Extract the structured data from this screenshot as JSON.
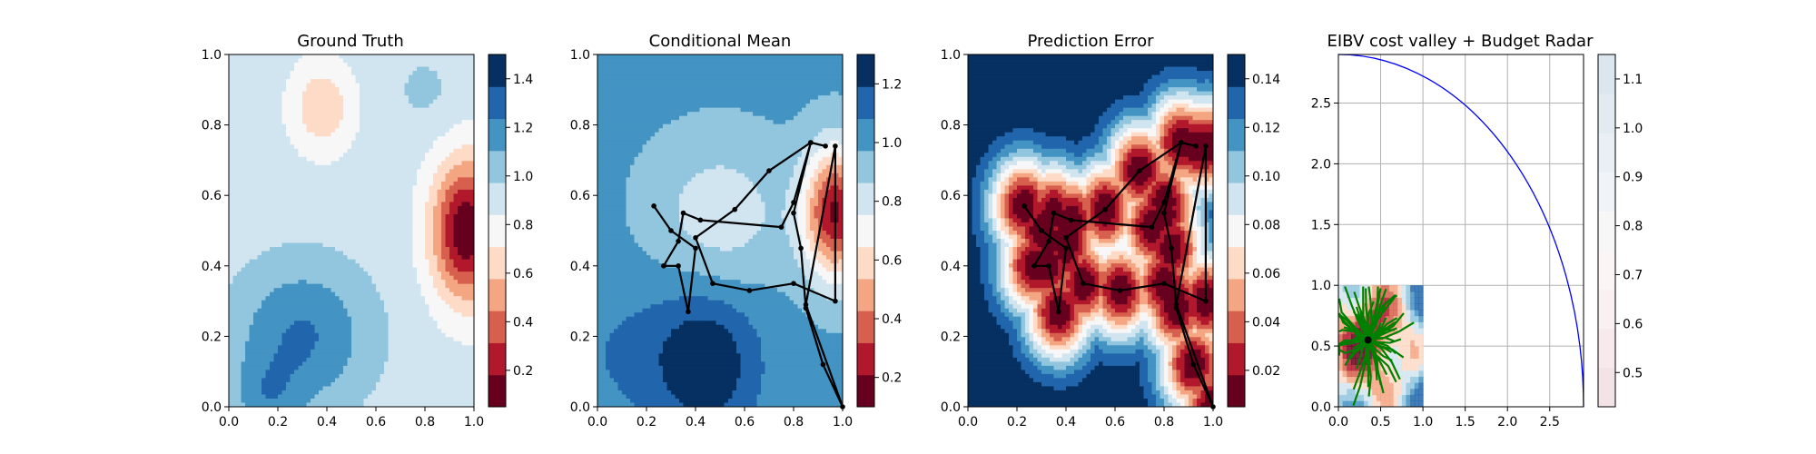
{
  "chart_data": [
    {
      "type": "heatmap",
      "title": "Ground Truth",
      "xlim": [
        0,
        1
      ],
      "ylim": [
        0,
        1
      ],
      "xticks": [
        "0.0",
        "0.2",
        "0.4",
        "0.6",
        "0.8",
        "1.0"
      ],
      "yticks": [
        "0.0",
        "0.2",
        "0.4",
        "0.6",
        "0.8",
        "1.0"
      ],
      "colorbar": {
        "ticks": [
          "0.2",
          "0.4",
          "0.6",
          "0.8",
          "1.0",
          "1.2",
          "1.4"
        ],
        "tick_values": [
          0.2,
          0.4,
          0.6,
          0.8,
          1.0,
          1.2,
          1.4
        ],
        "range": [
          0.05,
          1.5
        ]
      },
      "colormap": [
        "#67001f",
        "#b2182b",
        "#d6604d",
        "#f4a582",
        "#fddbc7",
        "#f7f7f7",
        "#d1e5f0",
        "#92c5de",
        "#4393c3",
        "#2166ac",
        "#053061"
      ],
      "field": {
        "background": 0.9,
        "components": [
          {
            "cx": 0.97,
            "cy": 0.5,
            "sx": 0.1,
            "sy": 0.14,
            "a": -0.85
          },
          {
            "cx": 0.38,
            "cy": 0.85,
            "sx": 0.09,
            "sy": 0.09,
            "a": -0.3
          },
          {
            "cx": 0.3,
            "cy": 0.2,
            "sx": 0.2,
            "sy": 0.15,
            "a": 0.35
          },
          {
            "cx": 0.15,
            "cy": 0.02,
            "sx": 0.1,
            "sy": 0.08,
            "a": 0.2
          },
          {
            "cx": 0.8,
            "cy": 0.9,
            "sx": 0.1,
            "sy": 0.08,
            "a": 0.1
          }
        ]
      }
    },
    {
      "type": "heatmap",
      "title": "Conditional Mean",
      "xlim": [
        0,
        1
      ],
      "ylim": [
        0,
        1
      ],
      "xticks": [
        "0.0",
        "0.2",
        "0.4",
        "0.6",
        "0.8",
        "1.0"
      ],
      "yticks": [
        "0.0",
        "0.2",
        "0.4",
        "0.6",
        "0.8",
        "1.0"
      ],
      "colorbar": {
        "ticks": [
          "0.2",
          "0.4",
          "0.6",
          "0.8",
          "1.0",
          "1.2"
        ],
        "tick_values": [
          0.2,
          0.4,
          0.6,
          0.8,
          1.0,
          1.2
        ],
        "range": [
          0.1,
          1.3
        ]
      },
      "colormap": [
        "#67001f",
        "#b2182b",
        "#d6604d",
        "#f4a582",
        "#fddbc7",
        "#f7f7f7",
        "#d1e5f0",
        "#92c5de",
        "#4393c3",
        "#2166ac",
        "#053061"
      ],
      "field": {
        "background": 1.0,
        "components": [
          {
            "cx": 0.97,
            "cy": 0.55,
            "sx": 0.09,
            "sy": 0.13,
            "a": -0.8
          },
          {
            "cx": 0.5,
            "cy": 0.55,
            "sx": 0.2,
            "sy": 0.15,
            "a": -0.2
          },
          {
            "cx": 0.45,
            "cy": 0.12,
            "sx": 0.14,
            "sy": 0.14,
            "a": 0.25
          },
          {
            "cx": 0.2,
            "cy": 0.15,
            "sx": 0.25,
            "sy": 0.15,
            "a": 0.1
          }
        ]
      },
      "path": [
        [
          0.23,
          0.57
        ],
        [
          0.3,
          0.5
        ],
        [
          0.4,
          0.45
        ],
        [
          0.37,
          0.27
        ],
        [
          0.33,
          0.4
        ],
        [
          0.27,
          0.4
        ],
        [
          0.33,
          0.47
        ],
        [
          0.35,
          0.55
        ],
        [
          0.42,
          0.53
        ],
        [
          0.75,
          0.51
        ],
        [
          0.8,
          0.58
        ],
        [
          0.87,
          0.75
        ],
        [
          0.8,
          0.55
        ],
        [
          0.83,
          0.45
        ],
        [
          0.85,
          0.28
        ],
        [
          0.92,
          0.12
        ],
        [
          1.0,
          0.0
        ],
        [
          0.85,
          0.29
        ],
        [
          0.97,
          0.74
        ],
        [
          0.97,
          0.3
        ],
        [
          0.8,
          0.35
        ],
        [
          0.62,
          0.33
        ],
        [
          0.47,
          0.35
        ],
        [
          0.4,
          0.48
        ],
        [
          0.56,
          0.56
        ],
        [
          0.7,
          0.67
        ],
        [
          0.87,
          0.75
        ],
        [
          0.93,
          0.74
        ]
      ]
    },
    {
      "type": "heatmap",
      "title": "Prediction Error",
      "xlim": [
        0,
        1
      ],
      "ylim": [
        0,
        1
      ],
      "xticks": [
        "0.0",
        "0.2",
        "0.4",
        "0.6",
        "0.8",
        "1.0"
      ],
      "yticks": [
        "0.0",
        "0.2",
        "0.4",
        "0.6",
        "0.8",
        "1.0"
      ],
      "colorbar": {
        "ticks": [
          "0.02",
          "0.04",
          "0.06",
          "0.08",
          "0.10",
          "0.12",
          "0.14"
        ],
        "tick_values": [
          0.02,
          0.04,
          0.06,
          0.08,
          0.1,
          0.12,
          0.14
        ],
        "range": [
          0.005,
          0.15
        ]
      },
      "colormap": [
        "#67001f",
        "#b2182b",
        "#d6604d",
        "#f4a582",
        "#fddbc7",
        "#f7f7f7",
        "#d1e5f0",
        "#92c5de",
        "#4393c3",
        "#2166ac",
        "#053061"
      ],
      "field": {
        "background": 0.15,
        "components": []
      },
      "path_ref": 1
    },
    {
      "type": "heatmap",
      "title": "EIBV cost valley + Budget Radar",
      "xlim": [
        0,
        2.9
      ],
      "ylim": [
        0,
        2.9
      ],
      "xticks": [
        "0.0",
        "0.5",
        "1.0",
        "1.5",
        "2.0",
        "2.5"
      ],
      "xtick_values": [
        0,
        0.5,
        1.0,
        1.5,
        2.0,
        2.5
      ],
      "yticks": [
        "0.0",
        "0.5",
        "1.0",
        "1.5",
        "2.0",
        "2.5"
      ],
      "ytick_values": [
        0,
        0.5,
        1.0,
        1.5,
        2.0,
        2.5
      ],
      "grid": true,
      "colorbar": {
        "ticks": [
          "0.5",
          "0.6",
          "0.7",
          "0.8",
          "0.9",
          "1.0",
          "1.1"
        ],
        "tick_values": [
          0.5,
          0.6,
          0.7,
          0.8,
          0.9,
          1.0,
          1.1
        ],
        "range": [
          0.43,
          1.15
        ]
      },
      "colormap": [
        "#f3e2e6",
        "#f7e9ec",
        "#faf0f2",
        "#fbf5f6",
        "#f7f7f7",
        "#f0f4f8",
        "#e9eff5",
        "#e2ebf2",
        "#dbe6ef"
      ],
      "budget_radius": 2.9,
      "valley_center": [
        0.35,
        0.55
      ],
      "valley_size": 1.0,
      "line_color": "#0000ff",
      "branch_color": "#008000"
    }
  ]
}
